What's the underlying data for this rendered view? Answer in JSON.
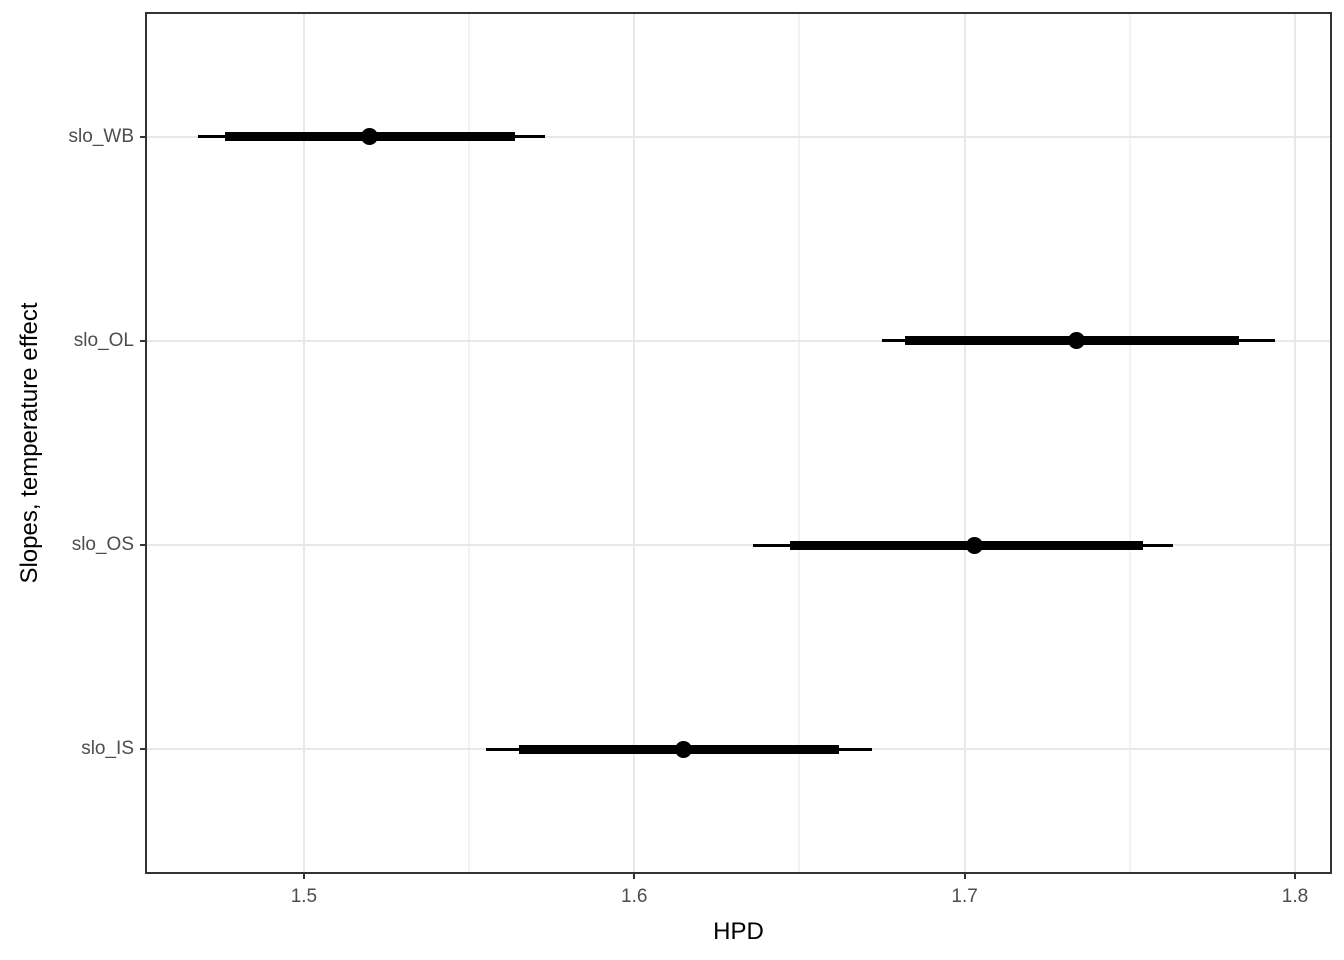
{
  "chart_data": {
    "type": "scatter",
    "subtype": "pointrange-forest-plot",
    "title": "",
    "xlabel": "HPD",
    "ylabel": "Slopes, temperature effect",
    "categories": [
      "slo_WB",
      "slo_OL",
      "slo_OS",
      "slo_IS"
    ],
    "points": [
      {
        "label": "slo_WB",
        "estimate": 1.52,
        "thick_interval": [
          1.476,
          1.564
        ],
        "thin_interval": [
          1.468,
          1.573
        ]
      },
      {
        "label": "slo_OL",
        "estimate": 1.734,
        "thick_interval": [
          1.682,
          1.783
        ],
        "thin_interval": [
          1.675,
          1.794
        ]
      },
      {
        "label": "slo_OS",
        "estimate": 1.703,
        "thick_interval": [
          1.647,
          1.754
        ],
        "thin_interval": [
          1.636,
          1.763
        ]
      },
      {
        "label": "slo_IS",
        "estimate": 1.615,
        "thick_interval": [
          1.565,
          1.662
        ],
        "thin_interval": [
          1.555,
          1.672
        ]
      }
    ],
    "x_ticks": [
      {
        "value": 1.5,
        "label": "1.5"
      },
      {
        "value": 1.6,
        "label": "1.6"
      },
      {
        "value": 1.7,
        "label": "1.7"
      },
      {
        "value": 1.8,
        "label": "1.8"
      }
    ],
    "x_minor_gridlines": [
      1.55,
      1.65,
      1.75
    ],
    "xlim": [
      1.4525,
      1.8106
    ],
    "grid": true,
    "legend": "none",
    "colors": {
      "data": "#000000",
      "panel_border": "#333333",
      "grid_major": "#E8E8E8",
      "grid_minor": "#F2F2F2",
      "tick_text": "#4D4D4D",
      "axis_title": "#000000",
      "background": "#FFFFFF"
    }
  }
}
